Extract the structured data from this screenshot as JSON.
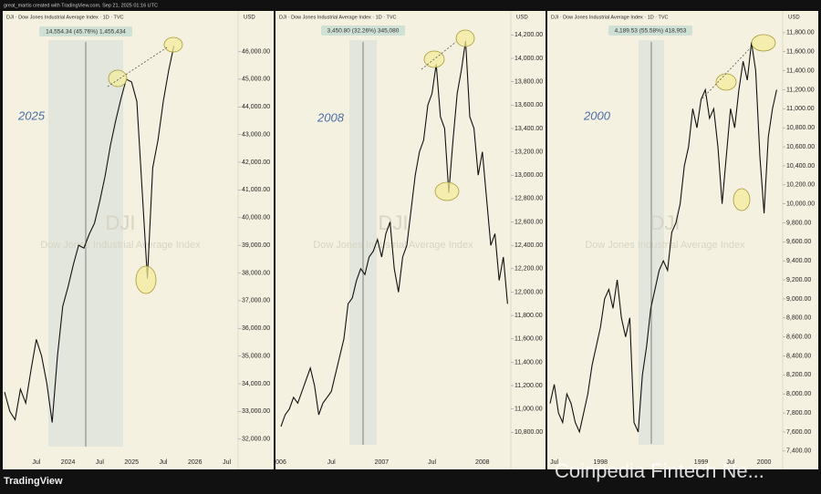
{
  "header": {
    "credit": "great_martis created with TradingView.com, Sep 21, 2025 01:16 UTC",
    "brand": "TradingView",
    "watermark": "Coinpedia Fintech Ne..."
  },
  "chart_data": [
    {
      "type": "line",
      "title": "DJI · Dow Jones Industrial Average Index · 1D · TVC",
      "currency": "USD",
      "period_label": "2025",
      "measure": "14,554.34 (45.76%) 1,455,434",
      "watermark_symbol": "DJI",
      "watermark_name": "Dow Jones Industrial Average Index",
      "color": "#111111",
      "categories": [
        null,
        null,
        null,
        null,
        null,
        null,
        "Jul",
        null,
        null,
        null,
        null,
        null,
        "2024",
        null,
        null,
        null,
        null,
        null,
        "Jul",
        null,
        null,
        null,
        null,
        null,
        "2025",
        null,
        null,
        null,
        null,
        null,
        "Jul",
        null,
        null,
        null,
        null,
        null,
        "2026",
        null,
        null,
        null,
        null,
        null,
        "Jul",
        null
      ],
      "values": [
        33700,
        33000,
        32700,
        33800,
        33300,
        34500,
        35600,
        35000,
        34000,
        32600,
        35000,
        36800,
        37500,
        38300,
        39000,
        38900,
        39400,
        39800,
        40600,
        41500,
        42600,
        43500,
        44300,
        45000,
        44900,
        44200,
        41000,
        37800,
        41800,
        42800,
        44200,
        45300,
        46200,
        null,
        null,
        null,
        null,
        null,
        null,
        null,
        null,
        null,
        null,
        null
      ],
      "ylim": [
        31400,
        47400
      ],
      "yticks": [
        {
          "value": 32000,
          "label": "32,000.00"
        },
        {
          "value": 33000,
          "label": "33,000.00"
        },
        {
          "value": 34000,
          "label": "34,000.00"
        },
        {
          "value": 35000,
          "label": "35,000.00"
        },
        {
          "value": 36000,
          "label": "36,000.00"
        },
        {
          "value": 37000,
          "label": "37,000.00"
        },
        {
          "value": 38000,
          "label": "38,000.00"
        },
        {
          "value": 39000,
          "label": "39,000.00"
        },
        {
          "value": 40000,
          "label": "40,000.00"
        },
        {
          "value": 41000,
          "label": "41,000.00"
        },
        {
          "value": 42000,
          "label": "42,000.00"
        },
        {
          "value": 43000,
          "label": "43,000.00"
        },
        {
          "value": 44000,
          "label": "44,000.00"
        },
        {
          "value": 45000,
          "label": "45,000.00"
        },
        {
          "value": 46000,
          "label": "46,000.00"
        }
      ]
    },
    {
      "type": "line",
      "title": "DJI · Dow Jones Industrial Average Index · 1D · TVC",
      "currency": "USD",
      "period_label": "2008",
      "measure": "3,450.80 (32.26%) 345,080",
      "watermark_symbol": "DJI",
      "watermark_name": "Dow Jones Industrial Average Index",
      "color": "#111111",
      "categories": [
        "006",
        null,
        null,
        null,
        null,
        null,
        null,
        null,
        null,
        null,
        null,
        null,
        "Jul",
        null,
        null,
        null,
        null,
        null,
        null,
        null,
        null,
        null,
        null,
        null,
        "2007",
        null,
        null,
        null,
        null,
        null,
        null,
        null,
        null,
        null,
        null,
        null,
        "Jul",
        null,
        null,
        null,
        null,
        null,
        null,
        null,
        null,
        null,
        null,
        null,
        "2008",
        null,
        null,
        null,
        null,
        null,
        null,
        null
      ],
      "values": [
        10850,
        10950,
        11000,
        11100,
        11050,
        11150,
        11250,
        11350,
        11200,
        10950,
        11050,
        11100,
        11150,
        11300,
        11450,
        11600,
        11900,
        11950,
        12100,
        12200,
        12150,
        12300,
        12350,
        12450,
        12300,
        12500,
        12600,
        12200,
        12000,
        12300,
        12400,
        12700,
        13000,
        13200,
        13300,
        13600,
        13700,
        13950,
        13500,
        13400,
        12850,
        13300,
        13700,
        13900,
        14150,
        13500,
        13400,
        13000,
        13200,
        12800,
        12400,
        12500,
        12100,
        12300,
        11900,
        null
      ],
      "ylim": [
        10600,
        14390
      ],
      "yticks": [
        {
          "value": 10800,
          "label": "10,800.00"
        },
        {
          "value": 11000,
          "label": "11,000.00"
        },
        {
          "value": 11200,
          "label": "11,200.00"
        },
        {
          "value": 11400,
          "label": "11,400.00"
        },
        {
          "value": 11600,
          "label": "11,600.00"
        },
        {
          "value": 11800,
          "label": "11,800.00"
        },
        {
          "value": 12000,
          "label": "12,000.00"
        },
        {
          "value": 12200,
          "label": "12,200.00"
        },
        {
          "value": 12400,
          "label": "12,400.00"
        },
        {
          "value": 12600,
          "label": "12,600.00"
        },
        {
          "value": 12800,
          "label": "12,800.00"
        },
        {
          "value": 13000,
          "label": "13,000.00"
        },
        {
          "value": 13200,
          "label": "13,200.00"
        },
        {
          "value": 13400,
          "label": "13,400.00"
        },
        {
          "value": 13600,
          "label": "13,600.00"
        },
        {
          "value": 13800,
          "label": "13,800.00"
        },
        {
          "value": 14000,
          "label": "14,000.00"
        },
        {
          "value": 14200,
          "label": "14,200.00"
        }
      ]
    },
    {
      "type": "line",
      "title": "DJI · Dow Jones Industrial Average Index · 1D · TVC",
      "currency": "USD",
      "period_label": "2000",
      "measure": "4,189.53 (55.58%) 418,953",
      "watermark_symbol": "DJI",
      "watermark_name": "Dow Jones Industrial Average Index",
      "color": "#111111",
      "categories": [
        null,
        "Jul",
        null,
        null,
        null,
        null,
        null,
        null,
        null,
        null,
        null,
        null,
        "1998",
        null,
        null,
        null,
        null,
        null,
        null,
        null,
        null,
        null,
        null,
        null,
        null,
        null,
        null,
        null,
        null,
        null,
        null,
        null,
        null,
        null,
        null,
        null,
        "1999",
        null,
        null,
        null,
        null,
        null,
        null,
        "Jul",
        null,
        null,
        null,
        null,
        null,
        null,
        null,
        "2000",
        null,
        null,
        null,
        null
      ],
      "values": [
        7900,
        8100,
        7800,
        7700,
        8000,
        7900,
        7700,
        7600,
        7800,
        8000,
        8300,
        8500,
        8700,
        9000,
        9100,
        8900,
        9200,
        8800,
        8600,
        8800,
        7700,
        7600,
        8200,
        8500,
        8900,
        9100,
        9300,
        9400,
        9300,
        9700,
        9800,
        10000,
        10400,
        10600,
        11000,
        10800,
        11100,
        11200,
        10900,
        11000,
        10600,
        10000,
        10500,
        11000,
        10800,
        11200,
        11500,
        11300,
        11700,
        11400,
        10500,
        9900,
        10700,
        11000,
        11200,
        null
      ],
      "ylim": [
        7350,
        12010
      ],
      "yticks": [
        {
          "value": 7400,
          "label": "7,400.00"
        },
        {
          "value": 7600,
          "label": "7,600.00"
        },
        {
          "value": 7800,
          "label": "7,800.00"
        },
        {
          "value": 8000,
          "label": "8,000.00"
        },
        {
          "value": 8200,
          "label": "8,200.00"
        },
        {
          "value": 8400,
          "label": "8,400.00"
        },
        {
          "value": 8600,
          "label": "8,600.00"
        },
        {
          "value": 8800,
          "label": "8,800.00"
        },
        {
          "value": 9000,
          "label": "9,000.00"
        },
        {
          "value": 9200,
          "label": "9,200.00"
        },
        {
          "value": 9400,
          "label": "9,400.00"
        },
        {
          "value": 9600,
          "label": "9,600.00"
        },
        {
          "value": 9800,
          "label": "9,800.00"
        },
        {
          "value": 10000,
          "label": "10,000.00"
        },
        {
          "value": 10200,
          "label": "10,200.00"
        },
        {
          "value": 10400,
          "label": "10,400.00"
        },
        {
          "value": 10600,
          "label": "10,600.00"
        },
        {
          "value": 10800,
          "label": "10,800.00"
        },
        {
          "value": 11000,
          "label": "11,000.00"
        },
        {
          "value": 11200,
          "label": "11,200.00"
        },
        {
          "value": 11400,
          "label": "11,400.00"
        },
        {
          "value": 11600,
          "label": "11,600.00"
        },
        {
          "value": 11800,
          "label": "11,800.00"
        }
      ]
    }
  ]
}
